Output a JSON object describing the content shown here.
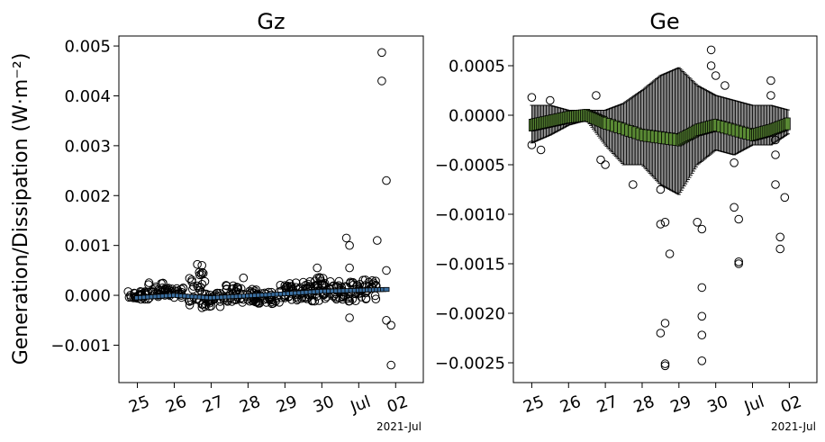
{
  "ylabel": "Generation/Dissipation (W·m⁻²)",
  "chart_data": [
    {
      "type": "box",
      "title": "Gz",
      "box_color": "#3b6fa0",
      "outlier_style": "open-circle",
      "x_range": [
        "2021-06-24T12:00",
        "2021-07-02T18:00"
      ],
      "ylim": [
        -0.00175,
        0.0052
      ],
      "yticks": [
        -0.001,
        0.0,
        0.001,
        0.002,
        0.003,
        0.004,
        0.005
      ],
      "ytick_labels": [
        "−0.001",
        "0.000",
        "0.001",
        "0.002",
        "0.003",
        "0.004",
        "0.005"
      ],
      "xticks": [
        "2021-06-25",
        "2021-06-26",
        "2021-06-27",
        "2021-06-28",
        "2021-06-29",
        "2021-06-30",
        "2021-07-01",
        "2021-07-02"
      ],
      "xtick_labels": [
        "25",
        "26",
        "27",
        "28",
        "29",
        "30",
        "Jul",
        "02"
      ],
      "offset_label": "2021-Jul",
      "median_band": [
        [
          "2021-06-25T00:00",
          -5e-05
        ],
        [
          "2021-06-26T00:00",
          0.0
        ],
        [
          "2021-06-27T00:00",
          -5e-05
        ],
        [
          "2021-06-28T00:00",
          -1e-05
        ],
        [
          "2021-06-29T00:00",
          3e-05
        ],
        [
          "2021-06-30T00:00",
          8e-05
        ],
        [
          "2021-07-01T00:00",
          0.0001
        ],
        [
          "2021-07-01T20:00",
          0.00012
        ]
      ],
      "outlier_clusters": [
        {
          "x": "2021-06-25T00:00",
          "y": 0.0,
          "spread": 9e-05
        },
        {
          "x": "2021-06-25T12:00",
          "y": 0.0001,
          "spread": 0.00018
        },
        {
          "x": "2021-06-26T00:00",
          "y": 5e-05,
          "spread": 0.0001
        },
        {
          "x": "2021-06-26T15:00",
          "y": 0.00015,
          "spread": 0.00035
        },
        {
          "x": "2021-06-27T00:00",
          "y": -0.0001,
          "spread": 0.00015
        },
        {
          "x": "2021-06-27T12:00",
          "y": 5e-05,
          "spread": 0.00018
        },
        {
          "x": "2021-06-28T00:00",
          "y": 0.0,
          "spread": 0.00015
        },
        {
          "x": "2021-06-28T12:00",
          "y": -5e-05,
          "spread": 0.00012
        },
        {
          "x": "2021-06-29T00:00",
          "y": 5e-05,
          "spread": 0.0002
        },
        {
          "x": "2021-06-29T12:00",
          "y": 0.0001,
          "spread": 0.00022
        },
        {
          "x": "2021-06-29T20:00",
          "y": 0.00012,
          "spread": 0.00025
        },
        {
          "x": "2021-06-30T06:00",
          "y": 0.0001,
          "spread": 0.00018
        },
        {
          "x": "2021-06-30T18:00",
          "y": 0.0001,
          "spread": 0.00022
        },
        {
          "x": "2021-07-01T06:00",
          "y": 0.00012,
          "spread": 0.0002
        }
      ],
      "outliers": [
        [
          "2021-06-26T15:00",
          0.00062
        ],
        [
          "2021-06-26T18:00",
          0.0006
        ],
        [
          "2021-06-27T21:00",
          0.00035
        ],
        [
          "2021-06-29T21:00",
          0.00055
        ],
        [
          "2021-06-30T16:00",
          0.00115
        ],
        [
          "2021-06-30T18:00",
          0.001
        ],
        [
          "2021-06-30T18:00",
          0.00055
        ],
        [
          "2021-07-01T12:00",
          0.0011
        ],
        [
          "2021-07-01T15:00",
          0.00487
        ],
        [
          "2021-07-01T15:00",
          0.0043
        ],
        [
          "2021-07-01T18:00",
          0.0023
        ],
        [
          "2021-07-01T18:00",
          0.0005
        ],
        [
          "2021-07-01T18:00",
          -0.0005
        ],
        [
          "2021-07-01T21:00",
          -0.0006
        ],
        [
          "2021-07-01T21:00",
          -0.0014
        ],
        [
          "2021-06-30T18:00",
          -0.00045
        ]
      ]
    },
    {
      "type": "box",
      "title": "Ge",
      "box_color": "#5a8a34",
      "outlier_style": "open-circle",
      "x_range": [
        "2021-06-24T12:00",
        "2021-07-02T18:00"
      ],
      "ylim": [
        -0.0027,
        0.0008
      ],
      "yticks": [
        -0.0025,
        -0.002,
        -0.0015,
        -0.001,
        -0.0005,
        0.0,
        0.0005
      ],
      "ytick_labels": [
        "−0.0025",
        "−0.0020",
        "−0.0015",
        "−0.0010",
        "−0.0005",
        "0.0000",
        "0.0005"
      ],
      "xticks": [
        "2021-06-25",
        "2021-06-26",
        "2021-06-27",
        "2021-06-28",
        "2021-06-29",
        "2021-06-30",
        "2021-07-01",
        "2021-07-02"
      ],
      "xtick_labels": [
        "25",
        "26",
        "27",
        "28",
        "29",
        "30",
        "Jul",
        "02"
      ],
      "offset_label": "2021-Jul",
      "median_band": [
        [
          "2021-06-25T00:00",
          -0.0001
        ],
        [
          "2021-06-25T12:00",
          -6e-05
        ],
        [
          "2021-06-26T00:00",
          -2e-05
        ],
        [
          "2021-06-26T12:00",
          0.0
        ],
        [
          "2021-06-27T00:00",
          -8e-05
        ],
        [
          "2021-06-28T00:00",
          -0.0002
        ],
        [
          "2021-06-29T00:00",
          -0.00025
        ],
        [
          "2021-06-29T12:00",
          -0.00015
        ],
        [
          "2021-06-30T00:00",
          -0.0001
        ],
        [
          "2021-07-01T00:00",
          -0.0002
        ],
        [
          "2021-07-01T12:00",
          -0.00015
        ],
        [
          "2021-07-02T00:00",
          -8e-05
        ]
      ],
      "whisker_band": [
        [
          "2021-06-25T00:00",
          -0.00028,
          0.0001
        ],
        [
          "2021-06-25T12:00",
          -0.0002,
          0.0001
        ],
        [
          "2021-06-26T00:00",
          -0.0001,
          5e-05
        ],
        [
          "2021-06-26T12:00",
          -5e-05,
          5e-05
        ],
        [
          "2021-06-27T00:00",
          -0.0003,
          5e-05
        ],
        [
          "2021-06-27T12:00",
          -0.0005,
          0.00012
        ],
        [
          "2021-06-28T00:00",
          -0.0005,
          0.00025
        ],
        [
          "2021-06-28T12:00",
          -0.0007,
          0.0004
        ],
        [
          "2021-06-29T00:00",
          -0.0008,
          0.00048
        ],
        [
          "2021-06-29T12:00",
          -0.0005,
          0.0003
        ],
        [
          "2021-06-30T00:00",
          -0.00035,
          0.0002
        ],
        [
          "2021-06-30T12:00",
          -0.0004,
          0.00015
        ],
        [
          "2021-07-01T00:00",
          -0.0003,
          0.0001
        ],
        [
          "2021-07-01T12:00",
          -0.0003,
          0.0001
        ],
        [
          "2021-07-02T00:00",
          -0.00018,
          5e-05
        ]
      ],
      "outliers": [
        [
          "2021-06-25T00:00",
          0.00018
        ],
        [
          "2021-06-25T00:00",
          -0.0003
        ],
        [
          "2021-06-25T06:00",
          -0.00035
        ],
        [
          "2021-06-25T12:00",
          0.00015
        ],
        [
          "2021-06-26T18:00",
          0.0002
        ],
        [
          "2021-06-26T21:00",
          -0.00045
        ],
        [
          "2021-06-27T00:00",
          -0.0005
        ],
        [
          "2021-06-27T18:00",
          -0.0007
        ],
        [
          "2021-06-28T12:00",
          -0.00075
        ],
        [
          "2021-06-28T12:00",
          -0.0011
        ],
        [
          "2021-06-28T15:00",
          -0.00108
        ],
        [
          "2021-06-28T12:00",
          -0.0022
        ],
        [
          "2021-06-28T15:00",
          -0.0021
        ],
        [
          "2021-06-28T15:00",
          -0.00253
        ],
        [
          "2021-06-28T15:00",
          -0.00251
        ],
        [
          "2021-06-28T18:00",
          -0.0014
        ],
        [
          "2021-06-29T12:00",
          -0.00108
        ],
        [
          "2021-06-29T15:00",
          -0.00115
        ],
        [
          "2021-06-29T15:00",
          -0.00203
        ],
        [
          "2021-06-29T15:00",
          -0.00222
        ],
        [
          "2021-06-29T15:00",
          -0.00248
        ],
        [
          "2021-06-29T15:00",
          -0.00174
        ],
        [
          "2021-06-29T21:00",
          0.00066
        ],
        [
          "2021-06-29T21:00",
          0.0005
        ],
        [
          "2021-06-30T00:00",
          0.0004
        ],
        [
          "2021-06-30T06:00",
          0.0003
        ],
        [
          "2021-06-30T12:00",
          -0.00048
        ],
        [
          "2021-06-30T12:00",
          -0.00093
        ],
        [
          "2021-06-30T15:00",
          -0.00105
        ],
        [
          "2021-06-30T15:00",
          -0.00148
        ],
        [
          "2021-06-30T15:00",
          -0.0015
        ],
        [
          "2021-07-01T12:00",
          0.00035
        ],
        [
          "2021-07-01T12:00",
          0.0002
        ],
        [
          "2021-07-01T15:00",
          -0.00025
        ],
        [
          "2021-07-01T15:00",
          -0.0004
        ],
        [
          "2021-07-01T15:00",
          -0.0007
        ],
        [
          "2021-07-01T18:00",
          -0.00123
        ],
        [
          "2021-07-01T18:00",
          -0.00135
        ],
        [
          "2021-07-01T21:00",
          -0.00083
        ]
      ]
    }
  ]
}
